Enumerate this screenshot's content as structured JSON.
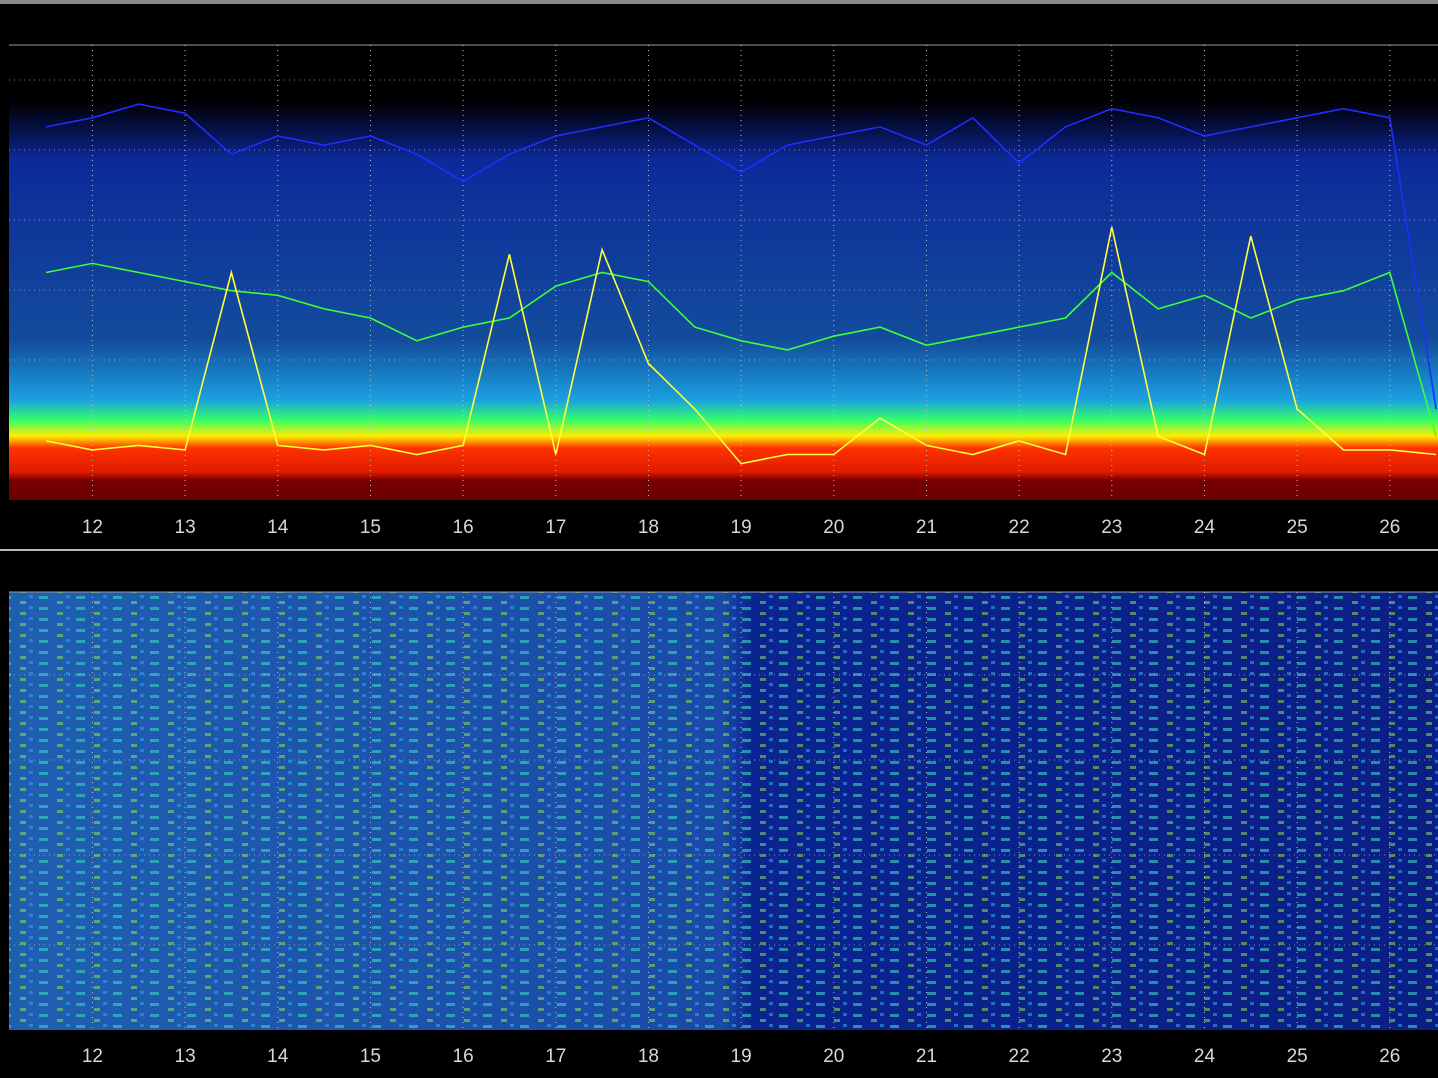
{
  "chart_data": [
    {
      "type": "line",
      "x": [
        11.5,
        12,
        12.5,
        13,
        13.5,
        14,
        14.5,
        15,
        15.5,
        16,
        16.5,
        17,
        17.5,
        18,
        18.5,
        19,
        19.5,
        20,
        20.5,
        21,
        21.5,
        22,
        22.5,
        23,
        23.5,
        24,
        24.5,
        25,
        25.5,
        26,
        26.5
      ],
      "series": [
        {
          "color": "#1f2dff",
          "values": [
            82,
            84,
            87,
            85,
            76,
            80,
            78,
            80,
            76,
            70,
            76,
            80,
            82,
            84,
            78,
            72,
            78,
            80,
            82,
            78,
            84,
            74,
            82,
            86,
            84,
            80,
            82,
            84,
            86,
            84,
            20
          ]
        },
        {
          "color": "#3cff3c",
          "values": [
            50,
            52,
            50,
            48,
            46,
            45,
            42,
            40,
            35,
            38,
            40,
            47,
            50,
            48,
            38,
            35,
            33,
            36,
            38,
            34,
            36,
            38,
            40,
            50,
            42,
            45,
            40,
            44,
            46,
            50,
            14
          ]
        },
        {
          "color": "#ffff3a",
          "values": [
            13,
            11,
            12,
            11,
            50,
            12,
            11,
            12,
            10,
            12,
            54,
            10,
            55,
            30,
            20,
            8,
            10,
            10,
            18,
            12,
            10,
            13,
            10,
            60,
            14,
            10,
            58,
            20,
            11,
            11,
            10
          ]
        }
      ],
      "xlim": [
        11.1,
        26.52
      ],
      "ylim": [
        0,
        100
      ],
      "xticks": [
        12,
        13,
        14,
        15,
        16,
        17,
        18,
        19,
        20,
        21,
        22,
        23,
        24,
        25,
        26
      ]
    },
    {
      "type": "heatmap",
      "xlim": [
        11.1,
        26.52
      ],
      "xticks": [
        12,
        13,
        14,
        15,
        16,
        17,
        18,
        19,
        20,
        21,
        22,
        23,
        24,
        25,
        26
      ]
    }
  ]
}
